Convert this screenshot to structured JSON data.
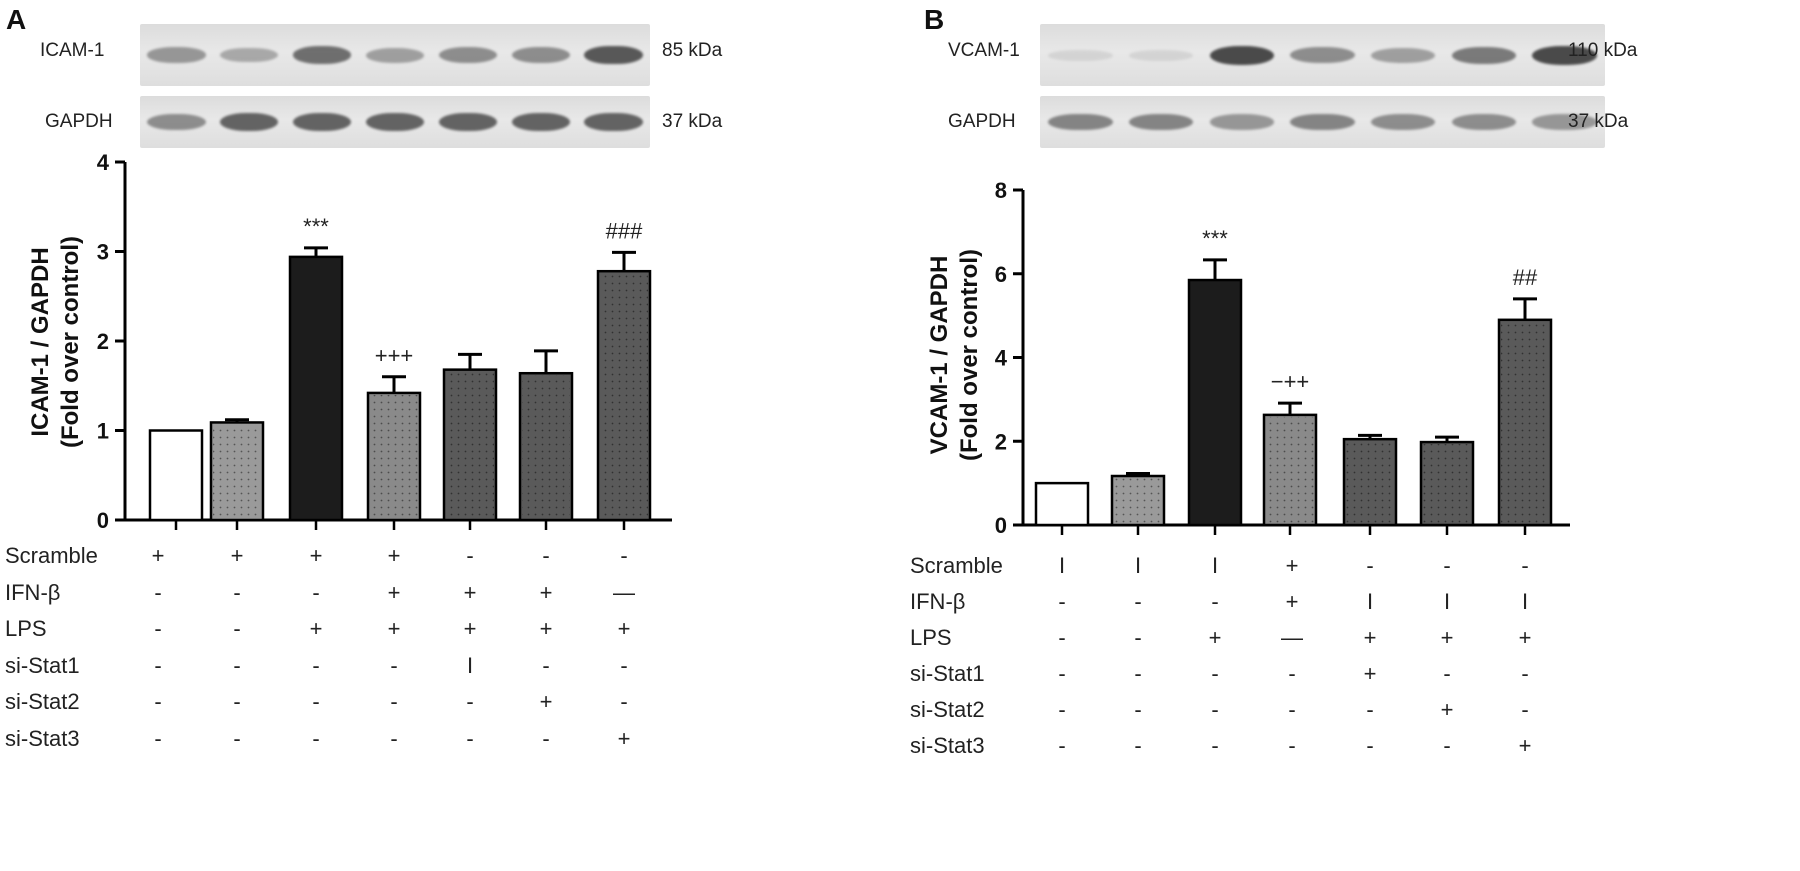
{
  "chart_data": [
    {
      "type": "bar",
      "panel": "A",
      "blots": [
        {
          "label": "ICAM-1",
          "size": "85 kDa",
          "intensities": [
            0.55,
            0.45,
            0.75,
            0.5,
            0.6,
            0.6,
            0.85
          ]
        },
        {
          "label": "GAPDH",
          "size": "37 kDa",
          "intensities": [
            0.6,
            0.8,
            0.8,
            0.8,
            0.8,
            0.8,
            0.8
          ]
        }
      ],
      "ylabel_line1": "ICAM-1 / GAPDH",
      "ylabel_line2": "(Fold over control)",
      "ylim": [
        0,
        4
      ],
      "yticks": [
        "0",
        "1",
        "2",
        "3",
        "4"
      ],
      "values": [
        1.0,
        1.09,
        2.94,
        1.42,
        1.68,
        1.64,
        2.78
      ],
      "errors": [
        0.0,
        0.03,
        0.1,
        0.18,
        0.17,
        0.25,
        0.21
      ],
      "fills": [
        "#ffffff",
        "#9a9a9a",
        "#1c1c1c",
        "#8a8a8a",
        "#5a5a5a",
        "#5a5a5a",
        "#5a5a5a"
      ],
      "annotations": [
        "",
        "",
        "***",
        "+++",
        "",
        "",
        "###"
      ],
      "conditions": [
        {
          "label": "Scramble",
          "symbols": [
            "+",
            "+",
            "+",
            "+",
            "-",
            "-",
            "-"
          ]
        },
        {
          "label": "IFN-β",
          "symbols": [
            "-",
            "-",
            "-",
            "+",
            "+",
            "+",
            "—"
          ]
        },
        {
          "label": "LPS",
          "symbols": [
            "-",
            "-",
            "+",
            "+",
            "+",
            "+",
            "+"
          ]
        },
        {
          "label": "si-Stat1",
          "symbols": [
            "-",
            "-",
            "-",
            "-",
            "I",
            "-",
            "-"
          ]
        },
        {
          "label": "si-Stat2",
          "symbols": [
            "-",
            "-",
            "-",
            "-",
            "-",
            "+",
            "-"
          ]
        },
        {
          "label": "si-Stat3",
          "symbols": [
            "-",
            "-",
            "-",
            "-",
            "-",
            "-",
            "+"
          ]
        }
      ]
    },
    {
      "type": "bar",
      "panel": "B",
      "blots": [
        {
          "label": "VCAM-1",
          "size": "110 kDa",
          "intensities": [
            0.1,
            0.1,
            0.9,
            0.6,
            0.5,
            0.7,
            0.9
          ]
        },
        {
          "label": "GAPDH",
          "size": "37 kDa",
          "intensities": [
            0.65,
            0.65,
            0.55,
            0.65,
            0.6,
            0.6,
            0.55
          ]
        }
      ],
      "ylabel_line1": "VCAM-1 / GAPDH",
      "ylabel_line2": "(Fold over control)",
      "ylim": [
        0,
        8
      ],
      "yticks": [
        "0",
        "2",
        "4",
        "6",
        "8"
      ],
      "values": [
        1.0,
        1.17,
        5.85,
        2.63,
        2.05,
        1.98,
        4.9
      ],
      "errors": [
        0.0,
        0.06,
        0.48,
        0.28,
        0.09,
        0.12,
        0.5
      ],
      "fills": [
        "#ffffff",
        "#9a9a9a",
        "#1c1c1c",
        "#8a8a8a",
        "#5a5a5a",
        "#5a5a5a",
        "#5a5a5a"
      ],
      "annotations": [
        "",
        "",
        "***",
        "−++",
        "",
        "",
        "##"
      ],
      "conditions": [
        {
          "label": "Scramble",
          "symbols": [
            "I",
            "I",
            "I",
            "+",
            "-",
            "-",
            "-"
          ]
        },
        {
          "label": "IFN-β",
          "symbols": [
            "-",
            "-",
            "-",
            "+",
            "I",
            "I",
            "I"
          ]
        },
        {
          "label": "LPS",
          "symbols": [
            "-",
            "-",
            "+",
            "—",
            "+",
            "+",
            "+"
          ]
        },
        {
          "label": "si-Stat1",
          "symbols": [
            "-",
            "-",
            "-",
            "-",
            "+",
            "-",
            "-"
          ]
        },
        {
          "label": "si-Stat2",
          "symbols": [
            "-",
            "-",
            "-",
            "-",
            "-",
            "+",
            "-"
          ]
        },
        {
          "label": "si-Stat3",
          "symbols": [
            "-",
            "-",
            "-",
            "-",
            "-",
            "-",
            "+"
          ]
        }
      ]
    }
  ],
  "panels": {
    "a_letter": "A",
    "b_letter": "B"
  }
}
